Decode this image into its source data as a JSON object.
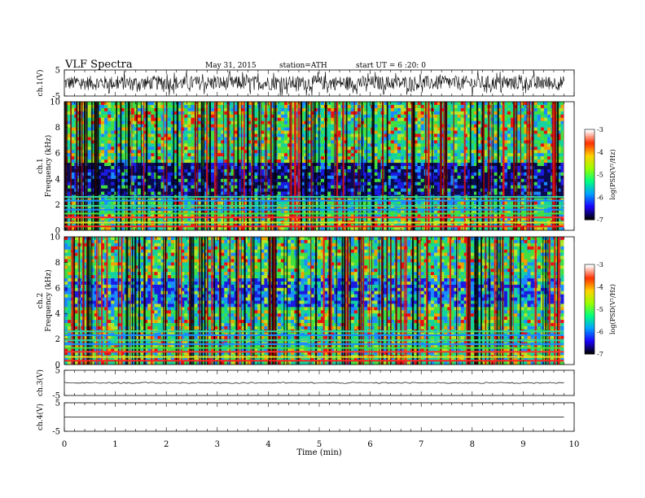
{
  "header": {
    "title": "VLF Spectra",
    "date": "May 31, 2015",
    "station": "station=ATH",
    "start": "start  UT =   6  :20: 0"
  },
  "chart_data": {
    "type": "heatmap",
    "xlabel": "Time  (min)",
    "xlim": [
      0,
      10
    ],
    "x_ticks": [
      "0",
      "1",
      "2",
      "3",
      "4",
      "5",
      "6",
      "7",
      "8",
      "9",
      "10"
    ],
    "data_end_min": 9.8,
    "panels": [
      {
        "id": "ch1_wave",
        "kind": "waveform",
        "ylabel": "ch.1(V)",
        "ylim": [
          -5,
          5
        ],
        "y_ticks": [
          "5",
          "-5"
        ],
        "amplitude": "large"
      },
      {
        "id": "ch1_spec",
        "kind": "spectrogram",
        "ylabel": "ch.1\nFrequency  (kHz)",
        "ylim": [
          0,
          10
        ],
        "y_ticks": [
          "0",
          "2",
          "4",
          "6",
          "8",
          "10"
        ]
      },
      {
        "id": "ch2_spec",
        "kind": "spectrogram",
        "ylabel": "ch.2\nFrequency  (kHz)",
        "ylim": [
          0,
          10
        ],
        "y_ticks": [
          "0",
          "2",
          "4",
          "6",
          "8",
          "10"
        ]
      },
      {
        "id": "ch3_wave",
        "kind": "waveform",
        "ylabel": "ch.3(V)",
        "ylim": [
          -5,
          5
        ],
        "y_ticks": [
          "5",
          "-5"
        ],
        "amplitude": "small"
      },
      {
        "id": "ch4_wave",
        "kind": "waveform",
        "ylabel": "ch.4(V)",
        "ylim": [
          -5,
          5
        ],
        "y_ticks": [
          "5",
          "-5"
        ],
        "amplitude": "flat"
      }
    ],
    "colorbar": {
      "label": "log(PSD(V²/Hz)",
      "range": [
        -7,
        -3
      ],
      "ticks": [
        "-3",
        "-4",
        "-5",
        "-6",
        "-7"
      ],
      "colormap": [
        "#000000",
        "#1b00ff",
        "#00a0ff",
        "#00ff80",
        "#9aff00",
        "#ffd200",
        "#ff3000",
        "#ffffff"
      ]
    },
    "colors": {
      "spectrogram_bands": [
        "#0a0a50",
        "#1b1be0",
        "#1a8cff",
        "#14d2a0",
        "#40e040",
        "#b4e628",
        "#f0a000",
        "#e81010",
        "#8b0000",
        "#000000"
      ]
    }
  }
}
